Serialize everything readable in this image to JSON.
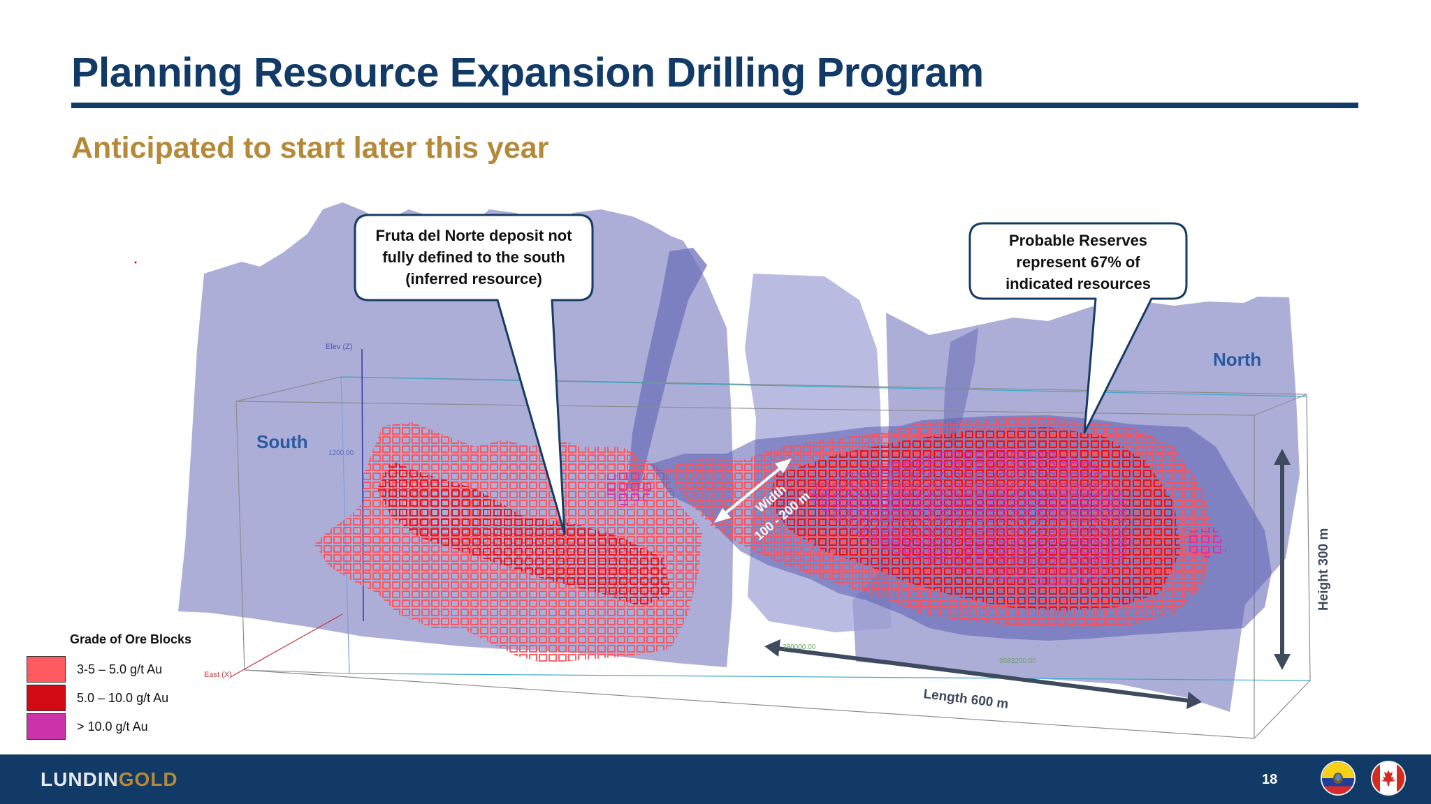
{
  "slide": {
    "title": "Planning Resource Expansion Drilling Program",
    "subtitle": "Anticipated to start later this year",
    "page_number": "18"
  },
  "diagram": {
    "labels": {
      "south": "South",
      "north": "North",
      "width": "Width",
      "width_value": "100 - 200 m",
      "height": "Height 300 m",
      "length": "Length 600 m"
    },
    "axis_labels": {
      "elev": "Elev (Z)",
      "east": "East (X)",
      "elev_tick": "1200.00",
      "coord_1": "780000.00",
      "coord_2": "9583200.00"
    }
  },
  "callouts": {
    "south": [
      "Fruta del Norte deposit not",
      "fully defined to the south",
      "(inferred resource)"
    ],
    "north": [
      "Probable Reserves",
      "represent 67% of",
      "indicated resources"
    ]
  },
  "legend": {
    "title": "Grade of Ore Blocks",
    "items": [
      {
        "label": "3-5 – 5.0 g/t Au",
        "color": "#ff5a5f"
      },
      {
        "label": "5.0 – 10.0 g/t Au",
        "color": "#d10a14"
      },
      {
        "label": "> 10.0 g/t Au",
        "color": "#cc33aa"
      }
    ]
  },
  "footer": {
    "logo_part1": "LUNDIN",
    "logo_part2": "GOLD"
  },
  "colors": {
    "primary": "#123a66",
    "accent": "#b48a3a",
    "fault_surface": "#9a9ccf",
    "ore_low": "#ff5a5f",
    "ore_mid": "#d10a14",
    "ore_high": "#cc33aa"
  },
  "icons": [
    "ecuador-flag-icon",
    "canada-flag-icon"
  ]
}
